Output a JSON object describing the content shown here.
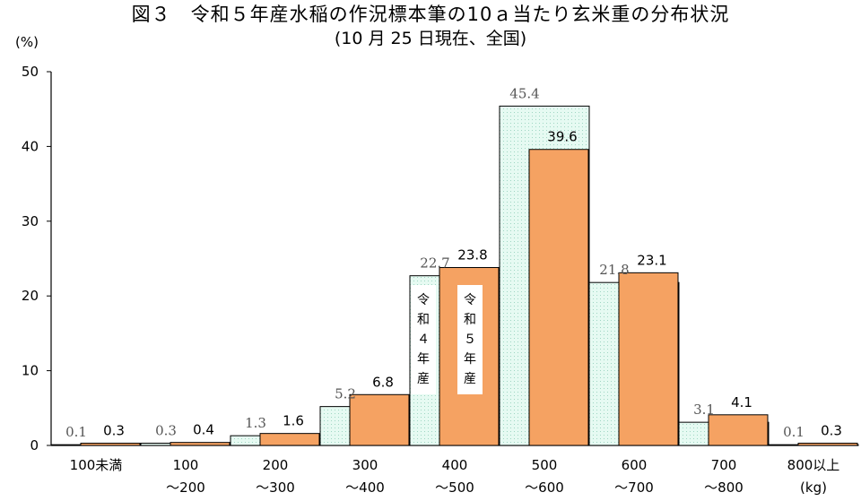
{
  "page": {
    "title": "図３　令和５年産水稲の作況標本筆の10ａ当たり玄米重の分布状況",
    "subtitle": "(10 月 25 日現在、全国)"
  },
  "colors": {
    "prev_fill": "#e6faf2",
    "prev_stroke": "#000000",
    "curr_fill": "#f5a262",
    "curr_stroke": "#000000"
  },
  "chart_data": {
    "type": "bar",
    "title": "図３　令和５年産水稲の作況標本筆の10ａ当たり玄米重の分布状況",
    "subtitle": "(10 月 25 日現在、全国)",
    "ylabel": "(%)",
    "xunit": "(kg)",
    "ylim": [
      0,
      50
    ],
    "yticks": [
      "0",
      "10",
      "20",
      "30",
      "40",
      "50"
    ],
    "categories": [
      [
        "100未満",
        ""
      ],
      [
        "100",
        "～200"
      ],
      [
        "200",
        "～300"
      ],
      [
        "300",
        "～400"
      ],
      [
        "400",
        "～500"
      ],
      [
        "500",
        "～600"
      ],
      [
        "600",
        "～700"
      ],
      [
        "700",
        "～800"
      ],
      [
        "800以上",
        "(kg)"
      ]
    ],
    "series": [
      {
        "name": "令和４年産",
        "values": [
          0.1,
          0.3,
          1.3,
          5.2,
          22.7,
          45.4,
          21.8,
          3.1,
          0.1
        ],
        "labels": [
          "0.1",
          "0.3",
          "1.3",
          "5.2",
          "22.7",
          "45.4",
          "21.8",
          "3.1",
          "0.1"
        ]
      },
      {
        "name": "令和５年産",
        "values": [
          0.3,
          0.4,
          1.6,
          6.8,
          23.8,
          39.6,
          23.1,
          4.1,
          0.3
        ],
        "labels": [
          "0.3",
          "0.4",
          "1.6",
          "6.8",
          "23.8",
          "39.6",
          "23.1",
          "4.1",
          "0.3"
        ]
      }
    ],
    "legend": [
      "令",
      "和",
      "４",
      "年",
      "産",
      "令",
      "和",
      "５",
      "年",
      "産"
    ]
  }
}
